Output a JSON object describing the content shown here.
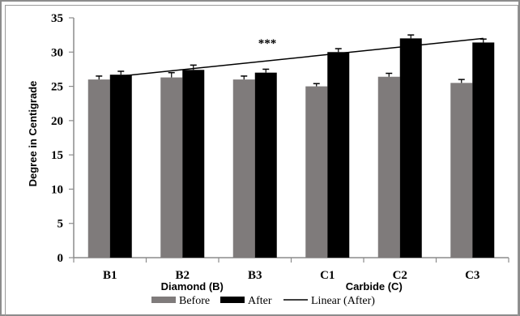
{
  "chart_data": {
    "type": "bar",
    "categories": [
      "B1",
      "B2",
      "B3",
      "C1",
      "C2",
      "C3"
    ],
    "groups": [
      "Diamond (B)",
      "Carbide (C)"
    ],
    "series": [
      {
        "name": "Before",
        "color": "#7f7b7b",
        "values": [
          26.0,
          26.3,
          26.0,
          25.0,
          26.4,
          25.5
        ],
        "errors": [
          0.5,
          0.7,
          0.5,
          0.4,
          0.5,
          0.5
        ]
      },
      {
        "name": "After",
        "color": "#000000",
        "values": [
          26.7,
          27.4,
          27.0,
          30.0,
          32.0,
          31.4
        ],
        "errors": [
          0.5,
          0.7,
          0.5,
          0.5,
          0.5,
          0.5
        ]
      }
    ],
    "trendline": {
      "name": "Linear (After)",
      "color": "#000000",
      "start": 26.5,
      "end": 32.0
    },
    "annotation": "***",
    "ylabel": "Degree in Centigrade",
    "xlabel": "",
    "title": "",
    "ylim": [
      0,
      35
    ],
    "yticks": [
      0,
      5,
      10,
      15,
      20,
      25,
      30,
      35
    ],
    "grid": false,
    "legend": "bottom"
  }
}
